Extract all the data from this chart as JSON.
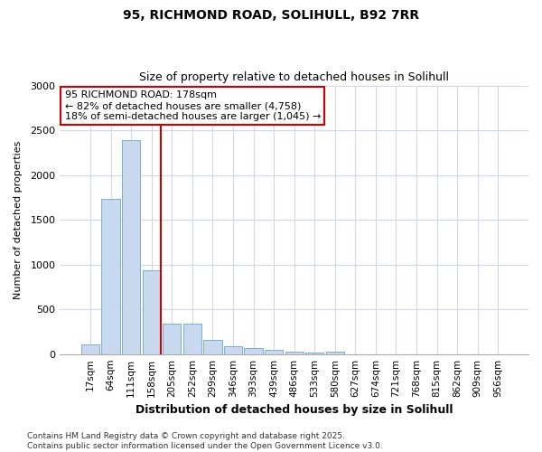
{
  "title_line1": "95, RICHMOND ROAD, SOLIHULL, B92 7RR",
  "title_line2": "Size of property relative to detached houses in Solihull",
  "xlabel": "Distribution of detached houses by size in Solihull",
  "ylabel": "Number of detached properties",
  "categories": [
    "17sqm",
    "64sqm",
    "111sqm",
    "158sqm",
    "205sqm",
    "252sqm",
    "299sqm",
    "346sqm",
    "393sqm",
    "439sqm",
    "486sqm",
    "533sqm",
    "580sqm",
    "627sqm",
    "674sqm",
    "721sqm",
    "768sqm",
    "815sqm",
    "862sqm",
    "909sqm",
    "956sqm"
  ],
  "values": [
    110,
    1730,
    2390,
    940,
    340,
    340,
    155,
    90,
    70,
    50,
    30,
    20,
    25,
    0,
    0,
    0,
    0,
    0,
    0,
    0,
    0
  ],
  "bar_color": "#c8d8ef",
  "bar_edge_color": "#7aadd4",
  "vline_x_index": 3,
  "vline_color": "#cc0000",
  "annotation_text": "95 RICHMOND ROAD: 178sqm\n← 82% of detached houses are smaller (4,758)\n18% of semi-detached houses are larger (1,045) →",
  "annotation_box_color": "#ffffff",
  "annotation_box_edge": "#cc0000",
  "ylim": [
    0,
    3000
  ],
  "yticks": [
    0,
    500,
    1000,
    1500,
    2000,
    2500,
    3000
  ],
  "footer": "Contains HM Land Registry data © Crown copyright and database right 2025.\nContains public sector information licensed under the Open Government Licence v3.0.",
  "bg_color": "#ffffff",
  "plot_bg_color": "#ffffff",
  "grid_color": "#d0d8e8"
}
